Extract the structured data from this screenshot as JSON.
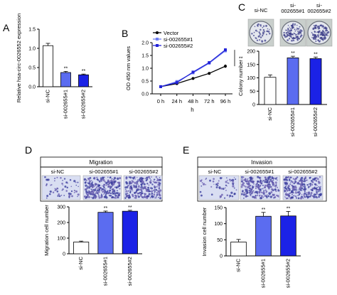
{
  "panels": {
    "A": "A",
    "B": "B",
    "C": "C",
    "D": "D",
    "E": "E"
  },
  "colors": {
    "white_bar": "#ffffff",
    "blue1": "#5b6cf0",
    "blue2": "#1b22e6",
    "vector": "#000000",
    "si1": "#6f7ef2",
    "si2": "#2324d8"
  },
  "chart_data": [
    {
      "type": "bar",
      "panel": "A",
      "categories": [
        "si-NC",
        "si-002655#1",
        "si-002655#2"
      ],
      "values": [
        1.07,
        0.37,
        0.31
      ],
      "errors": [
        0.06,
        0.03,
        0.02
      ],
      "significance": [
        "",
        "**",
        "**"
      ],
      "ylabel": "Relative hsa-circ-0026552 expression",
      "ylim": [
        0,
        1.5
      ],
      "yticks": [
        "0.0",
        "0.5",
        "1.0",
        "1.5"
      ]
    },
    {
      "type": "line",
      "panel": "B",
      "x": [
        "0 h",
        "24 h",
        "48 h",
        "72 h",
        "96 h"
      ],
      "xlabel": "h",
      "ylabel": "OD 450 nm values",
      "ylim": [
        0,
        2.0
      ],
      "yticks": [
        "0.0",
        "0.5",
        "1.0",
        "1.5",
        "2.0"
      ],
      "series": [
        {
          "name": "Vector",
          "values": [
            0.28,
            0.4,
            0.6,
            0.8,
            1.08
          ],
          "errors": [
            0.02,
            0.03,
            0.04,
            0.05,
            0.07
          ]
        },
        {
          "name": "si-002655#1",
          "values": [
            0.28,
            0.48,
            0.82,
            1.2,
            1.68
          ],
          "errors": [
            0.02,
            0.03,
            0.04,
            0.06,
            0.06
          ]
        },
        {
          "name": "si-002655#2",
          "values": [
            0.28,
            0.44,
            0.85,
            1.22,
            1.72
          ],
          "errors": [
            0.02,
            0.03,
            0.04,
            0.06,
            0.06
          ]
        }
      ],
      "annotation": "**"
    },
    {
      "type": "bar",
      "panel": "C",
      "categories": [
        "si-NC",
        "si-002655#1",
        "si-002655#2"
      ],
      "values": [
        102,
        175,
        172
      ],
      "errors": [
        9,
        6,
        6
      ],
      "significance": [
        "",
        "**",
        "**"
      ],
      "ylabel": "Colony number",
      "ylim": [
        0,
        200
      ],
      "yticks": [
        "0",
        "50",
        "100",
        "150",
        "200"
      ],
      "image_labels": [
        "si-NC",
        "si-\n002655#1",
        "si-\n002655#2"
      ]
    },
    {
      "type": "bar",
      "panel": "D",
      "title": "Migration",
      "categories": [
        "si-NC",
        "si-002655#1",
        "si-002655#2"
      ],
      "values": [
        75,
        265,
        272
      ],
      "errors": [
        6,
        8,
        6
      ],
      "significance": [
        "",
        "**",
        "**"
      ],
      "ylabel": "Migration cell number",
      "ylim": [
        0,
        300
      ],
      "yticks": [
        "0",
        "100",
        "200",
        "300"
      ],
      "image_labels": [
        "si-NC",
        "si-002655#1",
        "si-002655#2"
      ]
    },
    {
      "type": "bar",
      "panel": "E",
      "title": "Invasion",
      "categories": [
        "si-NC",
        "si-002655#1",
        "si-002655#2"
      ],
      "values": [
        43,
        123,
        124
      ],
      "errors": [
        8,
        12,
        14
      ],
      "significance": [
        "",
        "**",
        "**"
      ],
      "ylabel": "Invasion cell number",
      "ylim": [
        0,
        150
      ],
      "yticks": [
        "0",
        "50",
        "100",
        "150"
      ],
      "image_labels": [
        "si-NC",
        "si-002655#1",
        "si-002655#2"
      ]
    }
  ]
}
